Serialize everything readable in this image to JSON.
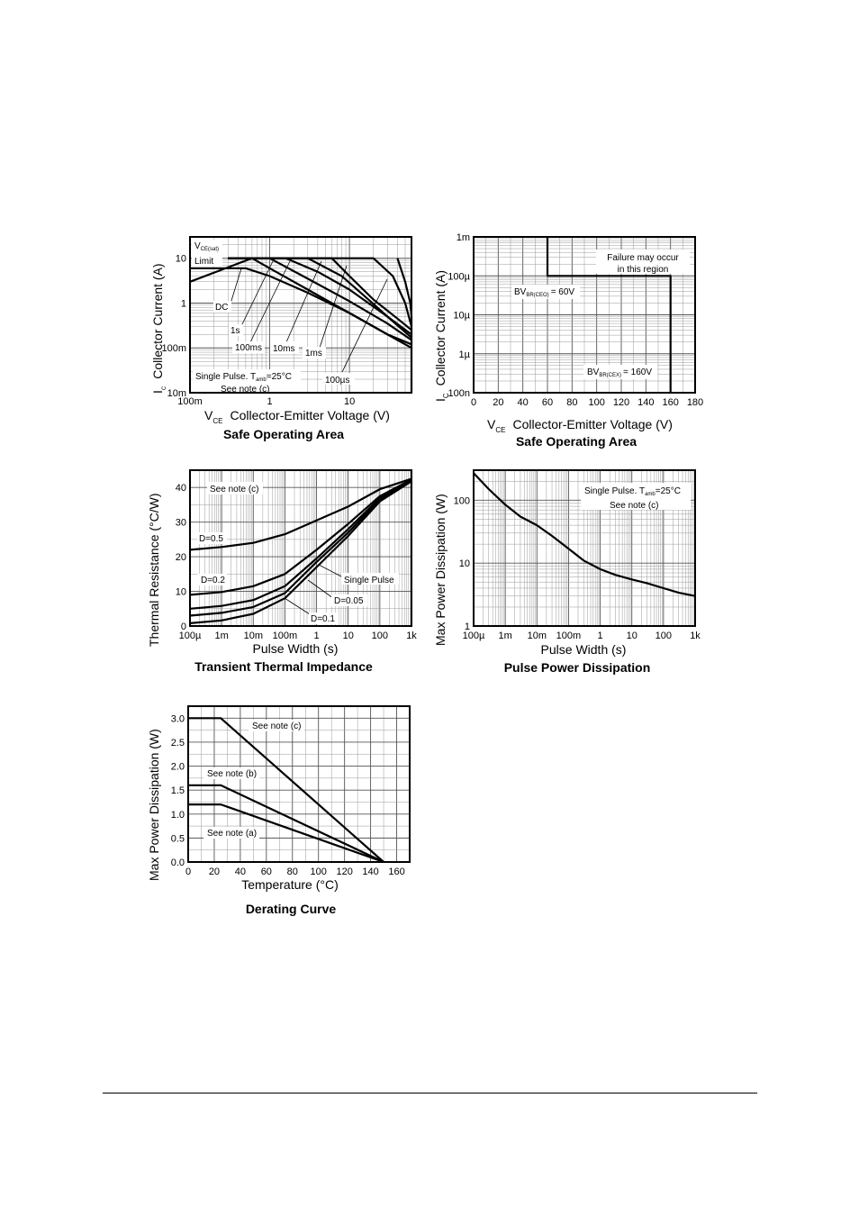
{
  "chart_data": [
    {
      "id": "soa1",
      "type": "line",
      "title": "Safe Operating Area",
      "xlabel": "Collector-Emitter Voltage (V)",
      "xsymbol": "V",
      "xsub": "CE",
      "ylabel": "Collector Current (A)",
      "ysymbol": "I",
      "ysub": "C",
      "xscale": "log",
      "yscale": "log",
      "xlim": [
        0.1,
        60
      ],
      "ylim": [
        0.01,
        30
      ],
      "xticks": [
        "100m",
        "1",
        "10"
      ],
      "yticks": [
        "10m",
        "100m",
        "1",
        "10"
      ],
      "grid": true,
      "annotations": {
        "vce_symbol": "V",
        "vce_sub": "CE(sat)",
        "limit": "Limit",
        "single_pulse": "Single Pulse. T",
        "tamb_sub": "amb",
        "tamb_val": "=25°C",
        "note": "See note (c)"
      },
      "series": [
        {
          "name": "DC",
          "x": [
            0.1,
            0.6,
            1,
            3,
            10,
            20,
            40,
            60
          ],
          "y": [
            3,
            10,
            6,
            2,
            0.6,
            0.3,
            0.15,
            0.1
          ]
        },
        {
          "name": "1s",
          "x": [
            0.1,
            0.5,
            1,
            3,
            10,
            30,
            60
          ],
          "y": [
            6,
            6,
            4,
            1.7,
            0.6,
            0.2,
            0.12
          ]
        },
        {
          "name": "100ms",
          "x": [
            0.3,
            1,
            3,
            10,
            30,
            60
          ],
          "y": [
            10,
            10,
            3.5,
            1.1,
            0.35,
            0.15
          ]
        },
        {
          "name": "10ms",
          "x": [
            0.3,
            1.6,
            4,
            10,
            30,
            60
          ],
          "y": [
            10,
            10,
            5,
            2,
            0.5,
            0.17
          ]
        },
        {
          "name": "1ms",
          "x": [
            0.3,
            3,
            8,
            15,
            30,
            60
          ],
          "y": [
            10,
            10,
            4,
            1.5,
            0.5,
            0.2
          ]
        },
        {
          "name": "100µs",
          "x": [
            0.3,
            6,
            10,
            20,
            40,
            60
          ],
          "y": [
            10,
            10,
            4,
            1.2,
            0.45,
            0.25
          ]
        },
        {
          "name": "",
          "x": [
            0.3,
            20,
            35,
            50,
            60
          ],
          "y": [
            10,
            10,
            4,
            1,
            0.3
          ]
        },
        {
          "name": "",
          "x": [
            40,
            50,
            58,
            60,
            60
          ],
          "y": [
            10,
            3,
            1,
            0.5,
            0.01
          ]
        }
      ]
    },
    {
      "id": "soa2",
      "type": "line",
      "title": "Safe Operating Area",
      "xlabel": "Collector-Emitter Voltage (V)",
      "xsymbol": "V",
      "xsub": "CE",
      "ylabel": "Collector Current (A)",
      "ysymbol": "I",
      "ysub": "C",
      "xscale": "linear",
      "yscale": "log",
      "xlim": [
        0,
        180
      ],
      "ylim": [
        1e-07,
        0.001
      ],
      "xticks": [
        "0",
        "20",
        "40",
        "60",
        "80",
        "100",
        "120",
        "140",
        "160",
        "180"
      ],
      "yticks": [
        "100n",
        "1µ",
        "10µ",
        "100µ",
        "1m"
      ],
      "grid": true,
      "annotations": {
        "failure_1": "Failure may occur",
        "failure_2": "in this region",
        "bv_ceo_label": "BV",
        "bv_ceo_sub": "BR(CEO)",
        "bv_ceo_val": "= 60V",
        "bv_cex_label": "BV",
        "bv_cex_sub": "BR(CEX)",
        "bv_cex_val": "= 160V"
      },
      "series": [
        {
          "name": "",
          "x": [
            60,
            60,
            160,
            160
          ],
          "y": [
            0.001,
            0.0001,
            0.0001,
            1e-07
          ]
        }
      ]
    },
    {
      "id": "tti",
      "type": "line",
      "title": "Transient Thermal Impedance",
      "xlabel": "Pulse Width (s)",
      "ylabel": "Thermal Resistance (°C/W)",
      "xscale": "log",
      "yscale": "linear",
      "xlim": [
        0.0001,
        1000
      ],
      "ylim": [
        0,
        45
      ],
      "xticks": [
        "100µ",
        "1m",
        "10m",
        "100m",
        "1",
        "10",
        "100",
        "1k"
      ],
      "yticks": [
        "0",
        "10",
        "20",
        "30",
        "40"
      ],
      "grid": true,
      "annotations": {
        "note": "See note (c)"
      },
      "series": [
        {
          "name": "D=0.5",
          "x": [
            0.0001,
            0.001,
            0.01,
            0.1,
            1,
            10,
            100,
            1000
          ],
          "y": [
            22,
            22.8,
            24,
            26.5,
            30.5,
            34.5,
            39.5,
            42.5
          ]
        },
        {
          "name": "D=0.2",
          "x": [
            0.0001,
            0.001,
            0.01,
            0.1,
            1,
            10,
            100,
            1000
          ],
          "y": [
            9,
            9.8,
            11.5,
            15,
            22,
            29.5,
            37.5,
            42.3
          ]
        },
        {
          "name": "D=0.1",
          "x": [
            0.0001,
            0.001,
            0.01,
            0.1,
            1,
            10,
            100,
            1000
          ],
          "y": [
            5,
            5.8,
            7.5,
            11.5,
            19.5,
            28,
            37,
            42.1
          ]
        },
        {
          "name": "D=0.05",
          "x": [
            0.0001,
            0.001,
            0.01,
            0.1,
            1,
            10,
            100,
            1000
          ],
          "y": [
            3,
            3.8,
            5.5,
            9.5,
            18.5,
            27,
            36.5,
            42
          ]
        },
        {
          "name": "Single Pulse",
          "x": [
            0.0001,
            0.001,
            0.01,
            0.1,
            1,
            10,
            100,
            1000
          ],
          "y": [
            0.8,
            1.6,
            3.5,
            8,
            17,
            26,
            36,
            41.8
          ]
        }
      ]
    },
    {
      "id": "ppd",
      "type": "line",
      "title": "Pulse Power Dissipation",
      "xlabel": "Pulse Width (s)",
      "ylabel": "Max Power Dissipation (W)",
      "xscale": "log",
      "yscale": "log",
      "xlim": [
        0.0001,
        1000
      ],
      "ylim": [
        1,
        300
      ],
      "xticks": [
        "100µ",
        "1m",
        "10m",
        "100m",
        "1",
        "10",
        "100",
        "1k"
      ],
      "yticks": [
        "1",
        "10",
        "100"
      ],
      "grid": true,
      "annotations": {
        "single_pulse": "Single Pulse. T",
        "tamb_sub": "amb",
        "tamb_val": "=25°C",
        "note": "See note (c)"
      },
      "series": [
        {
          "name": "",
          "x": [
            0.0001,
            0.0003,
            0.001,
            0.003,
            0.01,
            0.03,
            0.1,
            0.3,
            1,
            3,
            10,
            30,
            100,
            300,
            1000
          ],
          "y": [
            270,
            150,
            85,
            55,
            40,
            27,
            17,
            11,
            8,
            6.5,
            5.5,
            4.8,
            4,
            3.4,
            3
          ]
        }
      ]
    },
    {
      "id": "derating",
      "type": "line",
      "title": "Derating Curve",
      "xlabel": "Temperature (°C)",
      "ylabel": "Max Power Dissipation (W)",
      "xscale": "linear",
      "yscale": "linear",
      "xlim": [
        0,
        170
      ],
      "ylim": [
        0,
        3.25
      ],
      "xticks": [
        "0",
        "20",
        "40",
        "60",
        "80",
        "100",
        "120",
        "140",
        "160"
      ],
      "yticks": [
        "0.0",
        "0.5",
        "1.0",
        "1.5",
        "2.0",
        "2.5",
        "3.0"
      ],
      "grid": true,
      "series": [
        {
          "name": "See note (c)",
          "x": [
            0,
            25,
            150
          ],
          "y": [
            3,
            3,
            0
          ]
        },
        {
          "name": "See note (b)",
          "x": [
            0,
            25,
            150
          ],
          "y": [
            1.6,
            1.6,
            0
          ]
        },
        {
          "name": "See note (a)",
          "x": [
            0,
            25,
            150
          ],
          "y": [
            1.2,
            1.2,
            0
          ]
        }
      ]
    }
  ]
}
